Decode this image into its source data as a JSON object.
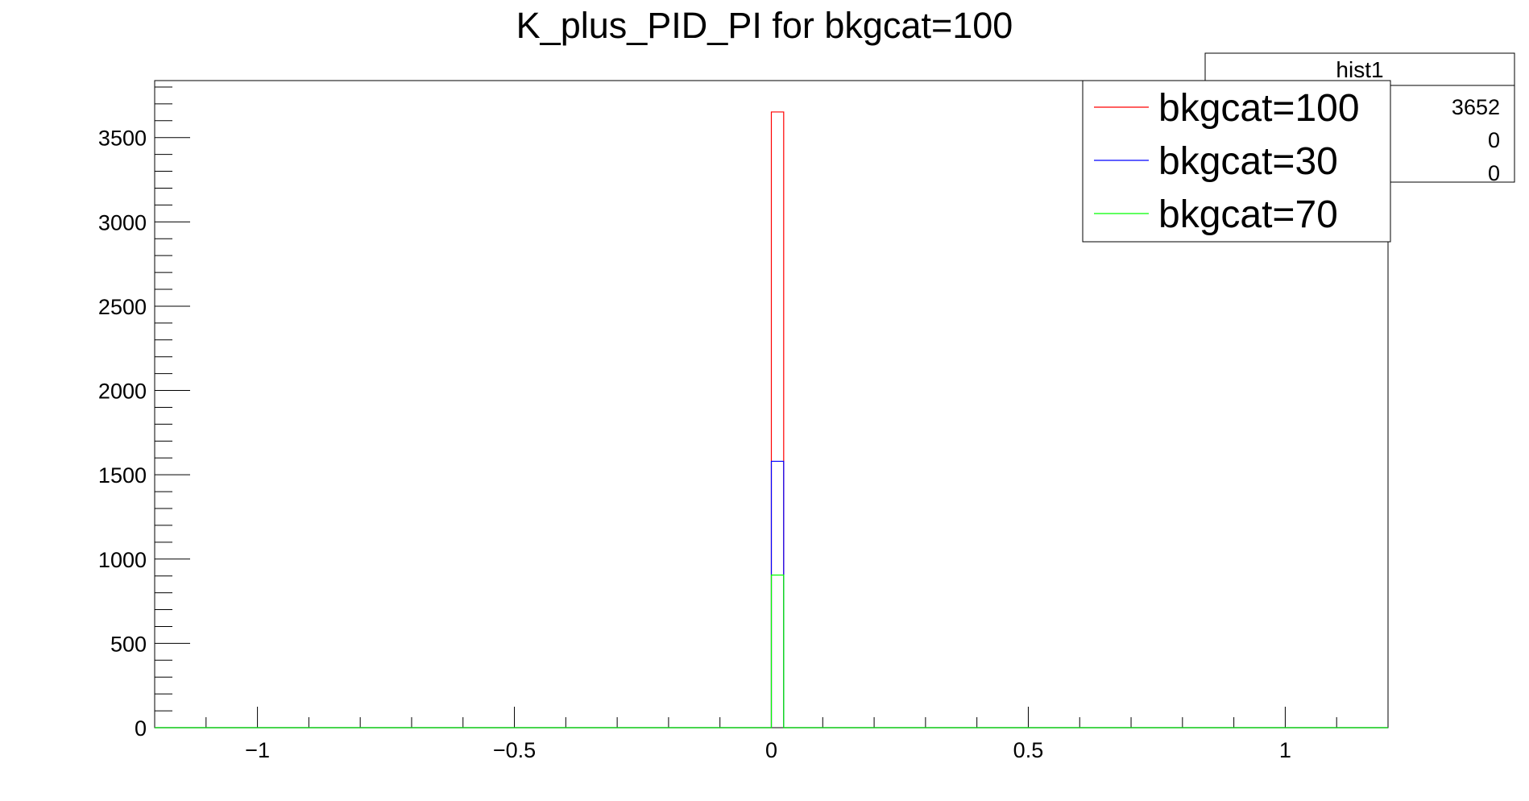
{
  "chart_data": {
    "type": "histogram",
    "title": "K_plus_PID_PI for bkgcat=100",
    "xlabel": "",
    "ylabel": "",
    "xlim": [
      -1.2,
      1.2
    ],
    "ylim": [
      0,
      3838
    ],
    "x_ticks": [
      {
        "value": -1,
        "label": "−1"
      },
      {
        "value": -0.5,
        "label": "−0.5"
      },
      {
        "value": 0,
        "label": "0"
      },
      {
        "value": 0.5,
        "label": "0.5"
      },
      {
        "value": 1,
        "label": "1"
      }
    ],
    "y_ticks": [
      0,
      500,
      1000,
      1500,
      2000,
      2500,
      3000,
      3500
    ],
    "grid": false,
    "bin_width": 0.024,
    "series": [
      {
        "name": "bkgcat=100",
        "color": "#ff0000",
        "bin_start": 0,
        "bin_end": 0.024,
        "value": 3652
      },
      {
        "name": "bkgcat=30",
        "color": "#0000ff",
        "bin_start": 0,
        "bin_end": 0.024,
        "value": 1580
      },
      {
        "name": "bkgcat=70",
        "color": "#00ff00",
        "bin_start": 0,
        "bin_end": 0.024,
        "value": 905
      }
    ],
    "legend": {
      "placement": "top-right",
      "entries": [
        "bkgcat=100",
        "bkgcat=30",
        "bkgcat=70"
      ]
    },
    "stats_box": {
      "title": "hist1",
      "values": [
        "3652",
        "0",
        "0"
      ]
    }
  }
}
